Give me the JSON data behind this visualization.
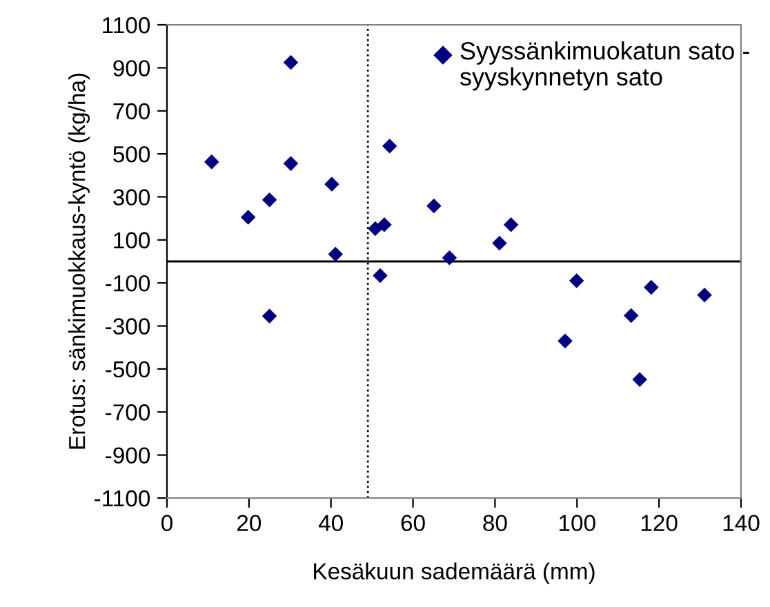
{
  "chart_data": {
    "type": "scatter",
    "xlabel": "Kesäkuun sademäärä (mm)",
    "ylabel": "Erotus: sänkimuokkaus-kyntö (kg/ha)",
    "xlim": [
      0,
      140
    ],
    "xticks": [
      0,
      20,
      40,
      60,
      80,
      100,
      120,
      140
    ],
    "ylim": [
      -1100,
      1100
    ],
    "yticks": [
      -1100,
      -900,
      -700,
      -500,
      -300,
      -100,
      100,
      300,
      500,
      700,
      900,
      1100
    ],
    "grid": false,
    "legend": "top right",
    "marker": "diamond",
    "ref_lines": [
      {
        "axis": "y",
        "value": 0,
        "line_style": "solid",
        "color": "#000000"
      },
      {
        "axis": "x",
        "value": 49,
        "line_style": "dotted",
        "color": "#000000"
      }
    ],
    "series": [
      {
        "name": "Syyssänkimuokatun sato - syyskynnetyn sato",
        "color": "#000080",
        "x": [
          10.9,
          19.8,
          25,
          30.2,
          30.2,
          40.2,
          41.1,
          50.8,
          53,
          54.3,
          65.1,
          68.9,
          52,
          25,
          81.1,
          83.9,
          99.9,
          97.1,
          113.2,
          118.1,
          131.1,
          115.3
        ],
        "values": [
          463,
          205,
          286,
          925,
          455,
          359,
          34,
          152,
          171,
          536,
          258,
          17,
          -66,
          -254,
          85,
          171,
          -90,
          -370,
          -252,
          -120,
          -156,
          -549
        ]
      }
    ]
  }
}
